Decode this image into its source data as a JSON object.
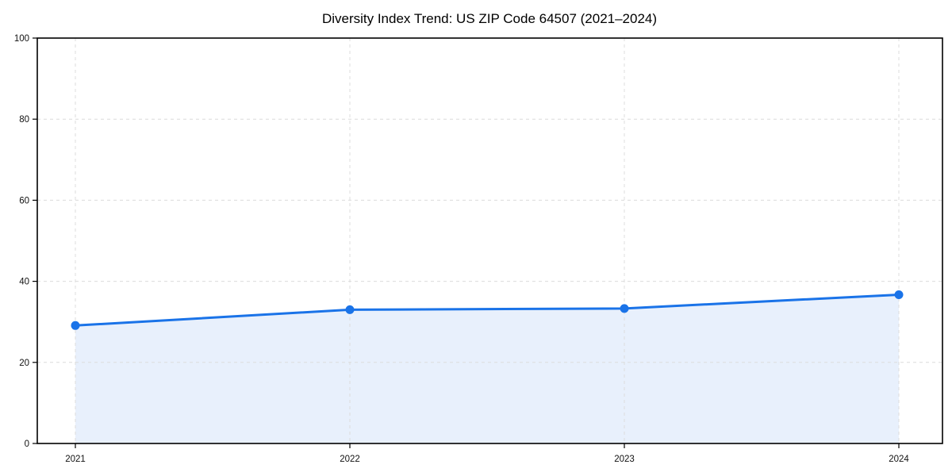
{
  "chart_data": {
    "type": "line",
    "title": "Diversity Index Trend: US ZIP Code 64507 (2021–2024)",
    "categories": [
      "2021",
      "2022",
      "2023",
      "2024"
    ],
    "series": [
      {
        "name": "Diversity Index",
        "values": [
          29.1,
          33.0,
          33.3,
          36.7
        ]
      }
    ],
    "xlabel": "",
    "ylabel": "",
    "ylim": [
      0,
      100
    ],
    "yticks": [
      0,
      20,
      40,
      60,
      80,
      100
    ],
    "legend_position": "none",
    "grid": {
      "visible": true,
      "style": "dashed",
      "axes": "both"
    },
    "area_fill": true,
    "marker": "circle",
    "colors": {
      "line": "#1a73e8",
      "marker": "#1a73e8",
      "area": "#e8f0fc",
      "grid": "#dcdcdc",
      "spine": "#000000",
      "tick_text": "#111111",
      "title_text": "#000000",
      "background": "#ffffff"
    }
  }
}
